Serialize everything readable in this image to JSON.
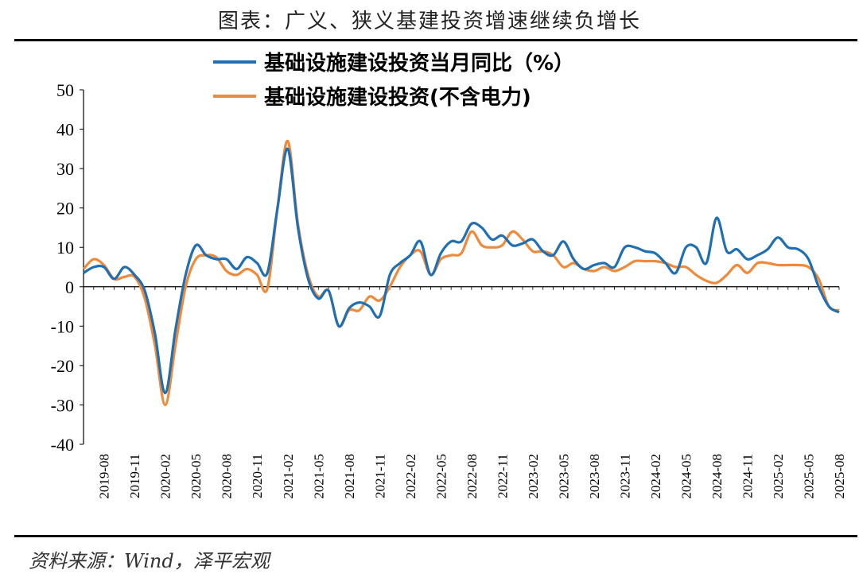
{
  "title": "图表：广义、狭义基建投资增速继续负增长",
  "source": "资料来源：Wind，泽平宏观",
  "colors": {
    "series1": "#1F6FB2",
    "series2": "#EE8A3C",
    "axis": "#000000"
  },
  "chart_data": {
    "type": "line",
    "ylim": [
      -40,
      50
    ],
    "yticks": [
      50,
      40,
      30,
      20,
      10,
      0,
      -10,
      -20,
      -30,
      -40
    ],
    "xtick_labels": [
      "2019-08",
      "2019-11",
      "2020-02",
      "2020-05",
      "2020-08",
      "2020-11",
      "2021-02",
      "2021-05",
      "2021-08",
      "2021-11",
      "2022-02",
      "2022-05",
      "2022-08",
      "2022-11",
      "2023-02",
      "2023-05",
      "2023-08",
      "2023-11",
      "2024-02",
      "2024-05",
      "2024-08",
      "2024-11",
      "2025-02",
      "2025-05",
      "2025-08"
    ],
    "legend_position": "top",
    "grid": false,
    "x": [
      "2019-06",
      "2019-07",
      "2019-08",
      "2019-09",
      "2019-10",
      "2019-11",
      "2019-12",
      "2020-01",
      "2020-02",
      "2020-03",
      "2020-04",
      "2020-05",
      "2020-06",
      "2020-07",
      "2020-08",
      "2020-09",
      "2020-10",
      "2020-11",
      "2020-12",
      "2021-01",
      "2021-02",
      "2021-03",
      "2021-04",
      "2021-05",
      "2021-06",
      "2021-07",
      "2021-08",
      "2021-09",
      "2021-10",
      "2021-11",
      "2021-12",
      "2022-01",
      "2022-02",
      "2022-03",
      "2022-04",
      "2022-05",
      "2022-06",
      "2022-07",
      "2022-08",
      "2022-09",
      "2022-10",
      "2022-11",
      "2022-12",
      "2023-01",
      "2023-02",
      "2023-03",
      "2023-04",
      "2023-05",
      "2023-06",
      "2023-07",
      "2023-08",
      "2023-09",
      "2023-10",
      "2023-11",
      "2023-12",
      "2024-01",
      "2024-02",
      "2024-03",
      "2024-04",
      "2024-05",
      "2024-06",
      "2024-07",
      "2024-08",
      "2024-09",
      "2024-10",
      "2024-11",
      "2024-12",
      "2025-01",
      "2025-02",
      "2025-03",
      "2025-04",
      "2025-05",
      "2025-06",
      "2025-07",
      "2025-08"
    ],
    "series": [
      {
        "name": "基础设施建设投资当月同比（%）",
        "values": [
          3.5,
          5,
          5,
          2,
          5,
          3,
          -1,
          -12,
          -27,
          -11,
          3,
          10.5,
          8,
          7,
          7,
          4.5,
          7.5,
          6,
          3.5,
          20,
          35,
          15,
          2,
          -3,
          -1,
          -10,
          -5.5,
          -4,
          -5,
          -7.5,
          3,
          6,
          8,
          11.5,
          3,
          8.5,
          11.5,
          11.5,
          16,
          15,
          12,
          13,
          10.5,
          11,
          12,
          9,
          8,
          11.5,
          7,
          4.5,
          5.5,
          6,
          5,
          10,
          10,
          9,
          8.5,
          6,
          3.5,
          10,
          10,
          6,
          17.5,
          9,
          9.5,
          7,
          8,
          9.5,
          12.5,
          10,
          9.5,
          7,
          0,
          -5,
          -6.5
        ]
      },
      {
        "name": "基础设施建设投资(不含电力)",
        "values": [
          4.5,
          7,
          5.5,
          2,
          2.5,
          2.5,
          -3,
          -15,
          -30,
          -15,
          0,
          7,
          8,
          7.5,
          4,
          3,
          4.5,
          3,
          -0.5,
          20,
          37,
          16,
          3,
          -2.5,
          -1,
          -10,
          -6,
          -6,
          -2.5,
          -3.5,
          0,
          5,
          8,
          9,
          3,
          7,
          8,
          8.5,
          14,
          10.5,
          10,
          10.5,
          14,
          12,
          9,
          9,
          8,
          5,
          6,
          4.5,
          4,
          5,
          4,
          5,
          6.5,
          6.5,
          6.5,
          6,
          5,
          5,
          3,
          1.5,
          1,
          3,
          5.5,
          3.5,
          6,
          6,
          5.5,
          5.5,
          5.5,
          5,
          2,
          -5,
          -6
        ]
      }
    ]
  }
}
